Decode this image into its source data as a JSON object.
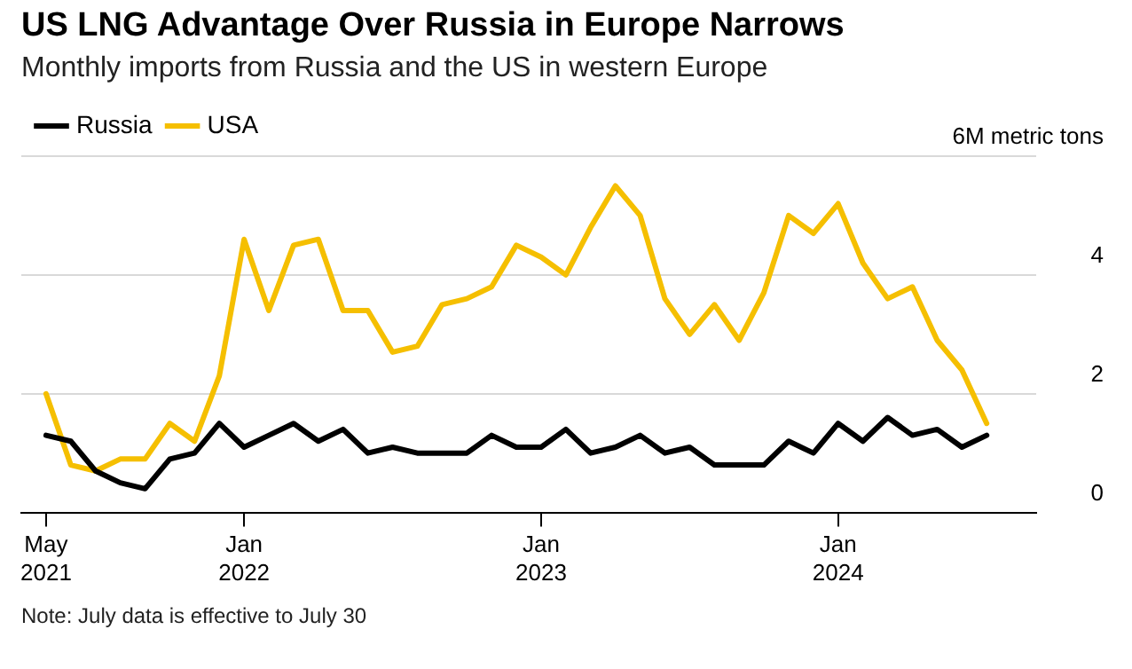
{
  "chart_data": {
    "type": "line",
    "title": "US LNG Advantage Over Russia in Europe Narrows",
    "subtitle": "Monthly imports from Russia and the US in western Europe",
    "x": [
      "2021-05",
      "2021-06",
      "2021-07",
      "2021-08",
      "2021-09",
      "2021-10",
      "2021-11",
      "2021-12",
      "2022-01",
      "2022-02",
      "2022-03",
      "2022-04",
      "2022-05",
      "2022-06",
      "2022-07",
      "2022-08",
      "2022-09",
      "2022-10",
      "2022-11",
      "2022-12",
      "2023-01",
      "2023-02",
      "2023-03",
      "2023-04",
      "2023-05",
      "2023-06",
      "2023-07",
      "2023-08",
      "2023-09",
      "2023-10",
      "2023-11",
      "2023-12",
      "2024-01",
      "2024-02",
      "2024-03",
      "2024-04",
      "2024-05",
      "2024-06",
      "2024-07"
    ],
    "series": [
      {
        "name": "Russia",
        "color": "#000000",
        "values": [
          1.3,
          1.2,
          0.7,
          0.5,
          0.4,
          0.9,
          1.0,
          1.5,
          1.1,
          1.3,
          1.5,
          1.2,
          1.4,
          1.0,
          1.1,
          1.0,
          1.0,
          1.0,
          1.3,
          1.1,
          1.1,
          1.4,
          1.0,
          1.1,
          1.3,
          1.0,
          1.1,
          0.8,
          0.8,
          0.8,
          1.2,
          1.0,
          1.5,
          1.2,
          1.6,
          1.3,
          1.4,
          1.1,
          1.3
        ]
      },
      {
        "name": "USA",
        "color": "#f5bf00",
        "values": [
          2.0,
          0.8,
          0.7,
          0.9,
          0.9,
          1.5,
          1.2,
          2.3,
          4.6,
          3.4,
          4.5,
          4.6,
          3.4,
          3.4,
          2.7,
          2.8,
          3.5,
          3.6,
          3.8,
          4.5,
          4.3,
          4.0,
          4.8,
          5.5,
          5.0,
          3.6,
          3.0,
          3.5,
          2.9,
          3.7,
          5.0,
          4.7,
          5.2,
          4.2,
          3.6,
          3.8,
          2.9,
          2.4,
          1.5
        ]
      }
    ],
    "xlim": [
      "2021-04",
      "2024-09"
    ],
    "xticks": [
      {
        "value": "2021-05",
        "label": "May 2021"
      },
      {
        "value": "2022-01",
        "label": "Jan 2022"
      },
      {
        "value": "2023-01",
        "label": "Jan 2023"
      },
      {
        "value": "2024-01",
        "label": "Jan 2024"
      }
    ],
    "ylim": [
      0,
      6
    ],
    "yticks": [
      0,
      2,
      4,
      {
        "value": 6,
        "label": "6M metric tons"
      }
    ],
    "grid": "y",
    "legend": "top left",
    "marker": "none",
    "line_style": "solid",
    "annotations": [
      "Note: July data is effective to July 30"
    ]
  }
}
